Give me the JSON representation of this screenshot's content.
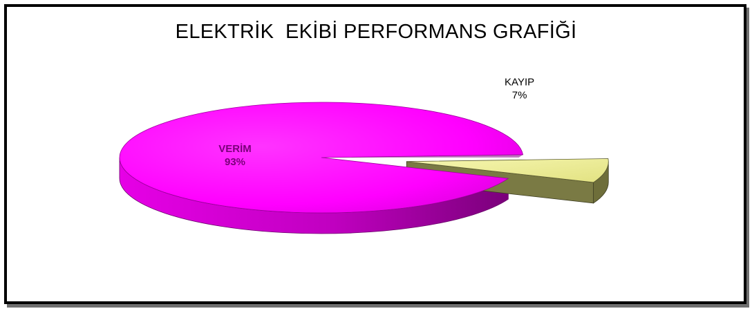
{
  "chart_data": {
    "type": "pie",
    "title": "ELEKTRİK  EKİBİ PERFORMANS GRAFİĞİ",
    "slices": [
      {
        "category": "VERİM",
        "value": 93,
        "value_label": "93%",
        "color": "#ff00ff",
        "side_color": "#a800a8",
        "label_color": "#7a007a",
        "exploded": false
      },
      {
        "category": "KAYIP",
        "value": 7,
        "value_label": "7%",
        "color": "#ecec94",
        "side_color": "#6e6e3a",
        "label_color": "#000000",
        "exploded": true
      }
    ],
    "legend": "none",
    "style": "3d-exploded"
  }
}
